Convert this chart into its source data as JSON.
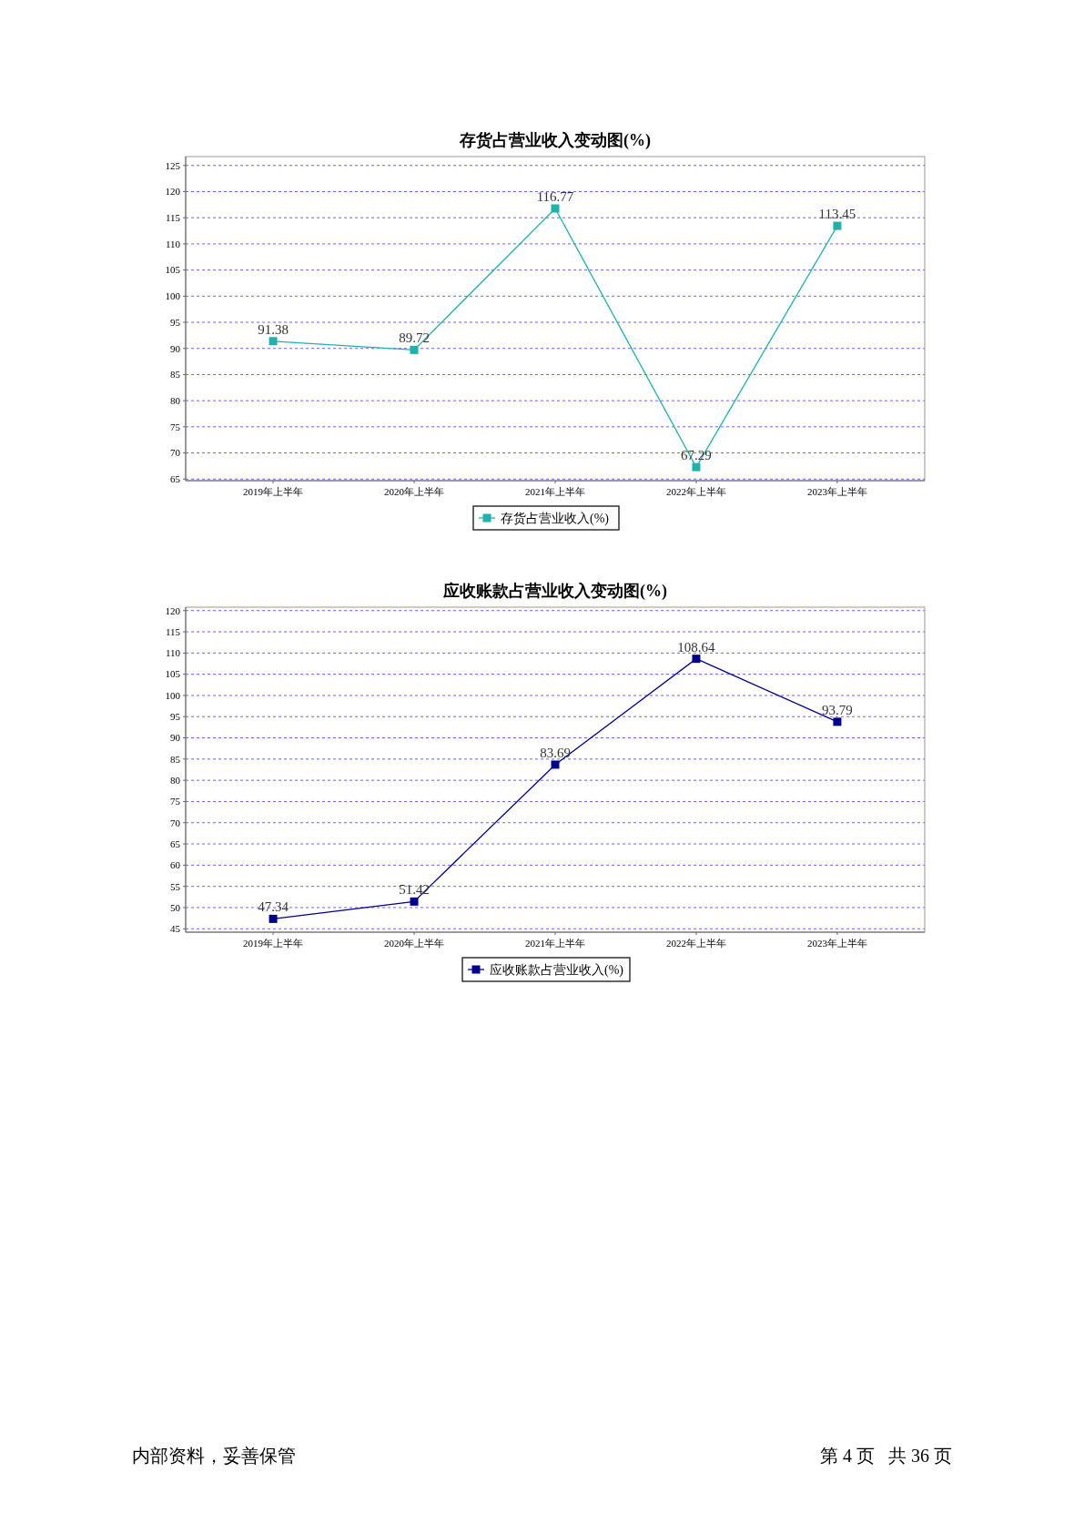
{
  "chart_data": [
    {
      "type": "line",
      "title": "存货占营业收入变动图(%)",
      "categories": [
        "2019年上半年",
        "2020年上半年",
        "2021年上半年",
        "2022年上半年",
        "2023年上半年"
      ],
      "series": [
        {
          "name": "存货占营业收入(%)",
          "color": "#20b2aa",
          "values": [
            91.38,
            89.72,
            116.77,
            67.29,
            113.45
          ]
        }
      ],
      "ylim": [
        64.7,
        126.7
      ],
      "yticks": [
        65,
        70,
        75,
        80,
        85,
        90,
        95,
        100,
        105,
        110,
        115,
        120,
        125
      ],
      "grid": "y",
      "legend": "bottom",
      "marker": "square",
      "line_style": "solid",
      "data_labels": true
    },
    {
      "type": "line",
      "title": "应收账款占营业收入变动图(%)",
      "categories": [
        "2019年上半年",
        "2020年上半年",
        "2021年上半年",
        "2022年上半年",
        "2023年上半年"
      ],
      "series": [
        {
          "name": "应收账款占营业收入(%)",
          "color": "#00008b",
          "values": [
            47.34,
            51.42,
            83.69,
            108.64,
            93.79
          ]
        }
      ],
      "ylim": [
        44.2,
        120.8
      ],
      "yticks": [
        45,
        50,
        55,
        60,
        65,
        70,
        75,
        80,
        85,
        90,
        95,
        100,
        105,
        110,
        115,
        120
      ],
      "grid": "y",
      "legend": "bottom",
      "marker": "square",
      "line_style": "solid",
      "data_labels": true,
      "annotations": [
        "内部资料，妥善保管",
        "第 4 页   共 36 页"
      ]
    }
  ]
}
